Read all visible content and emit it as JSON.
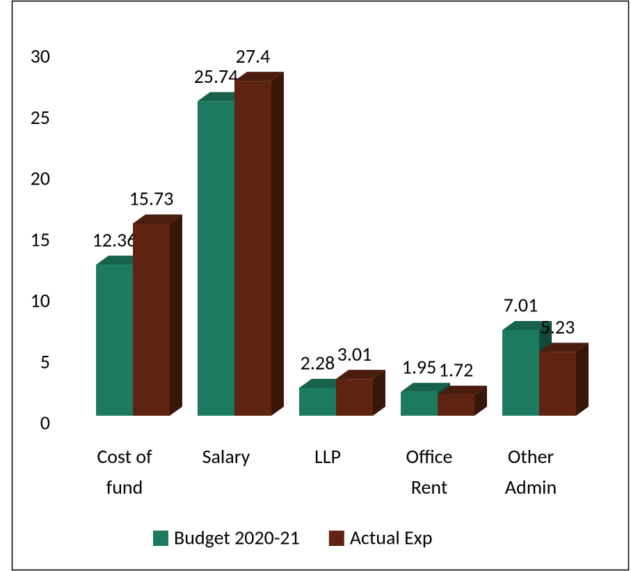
{
  "chart_data": {
    "type": "bar3d",
    "categories": [
      "Cost of fund",
      "Salary",
      "LLP",
      "Office Rent",
      "Other Admin"
    ],
    "series": [
      {
        "name": "Budget 2020-21",
        "color": "#1b7a5f",
        "values": [
          12.36,
          25.74,
          2.28,
          1.95,
          7.01
        ]
      },
      {
        "name": "Actual Exp",
        "color": "#5e2411",
        "values": [
          15.73,
          27.4,
          3.01,
          1.72,
          5.23
        ]
      }
    ],
    "ylim": [
      0,
      30
    ],
    "yticks": [
      0,
      5,
      10,
      15,
      20,
      25,
      30
    ],
    "grid": false,
    "legend": "bottom"
  }
}
